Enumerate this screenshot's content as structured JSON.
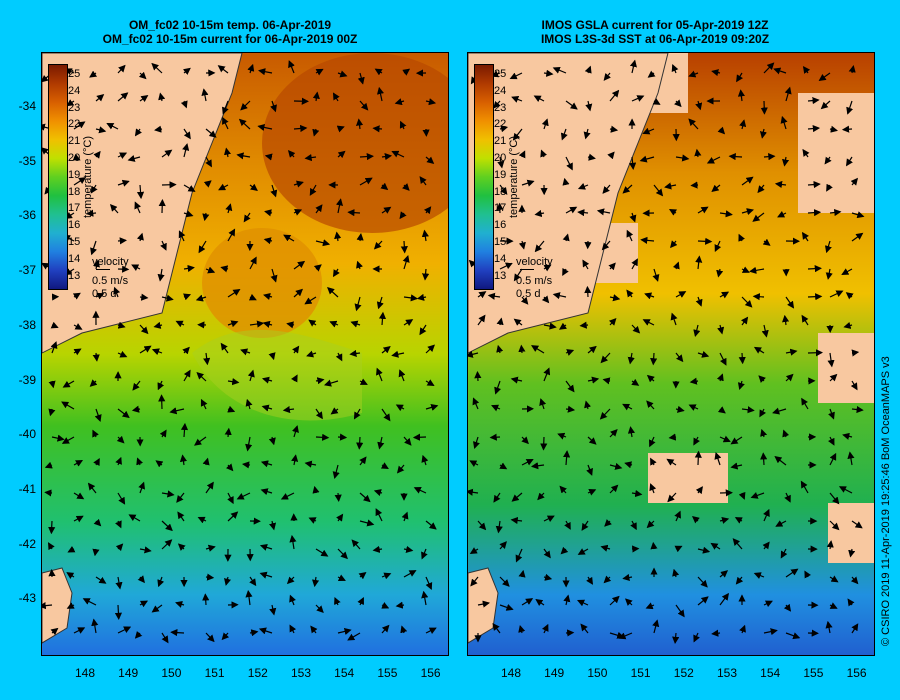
{
  "left": {
    "title_line1": "OM_fc02 10-15m temp. 06-Apr-2019",
    "title_line2": "OM_fc02 10-15m current for 06-Apr-2019 00Z"
  },
  "right": {
    "title_line1": "IMOS GSLA current for 05-Apr-2019 12Z",
    "title_line2": "IMOS L3S-3d SST at 06-Apr-2019 09:20Z"
  },
  "y_ticks": [
    "-34",
    "-35",
    "-36",
    "-37",
    "-38",
    "-39",
    "-40",
    "-41",
    "-42",
    "-43"
  ],
  "x_ticks": [
    "148",
    "149",
    "150",
    "151",
    "152",
    "153",
    "154",
    "155",
    "156"
  ],
  "colorbar": {
    "ticks": [
      "25",
      "24",
      "23",
      "22",
      "21",
      "20",
      "19",
      "18",
      "17",
      "16",
      "15",
      "14",
      "13"
    ],
    "label": "temperature (°C)"
  },
  "velocity": {
    "label": "velocity",
    "speed": "0.5 m/s",
    "duration": "0.5 d"
  },
  "credit": "© CSIRO 2019   11-Apr-2019 19:25:46 BoM OceanMAPS v3",
  "colors": {
    "background": "#00ccff",
    "land": "#f8c8a0"
  }
}
